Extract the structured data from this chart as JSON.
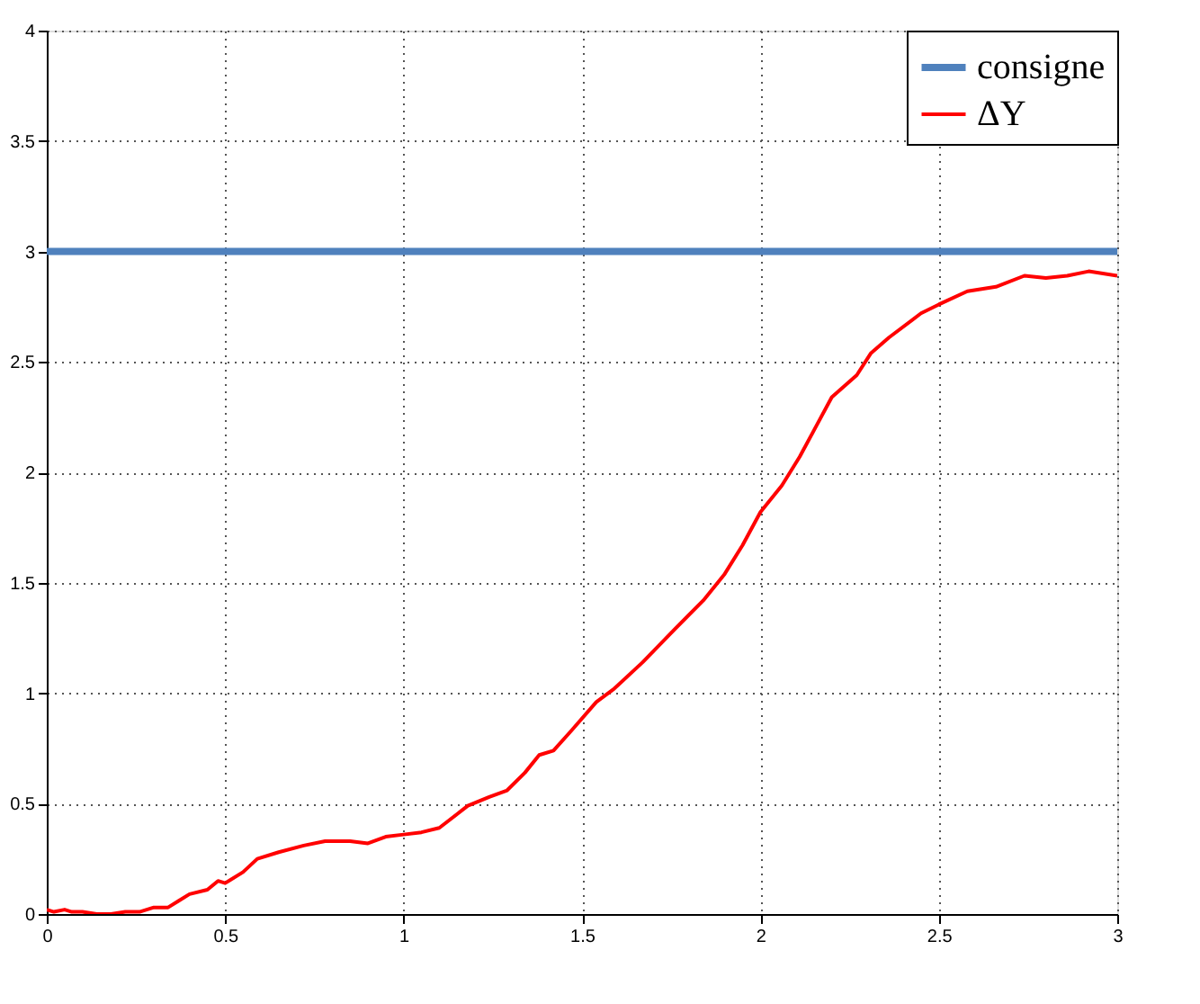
{
  "chart_data": {
    "type": "line",
    "xlim": [
      0,
      3
    ],
    "ylim": [
      0,
      4
    ],
    "xticks": [
      0,
      0.5,
      1,
      1.5,
      2,
      2.5,
      3
    ],
    "yticks": [
      0,
      0.5,
      1,
      1.5,
      2,
      2.5,
      3,
      3.5,
      4
    ],
    "grid": true,
    "legend": "top right",
    "line_style": "solid",
    "marker": "none",
    "series": [
      {
        "name": "consigne",
        "color": "#4f81bd",
        "x": [
          0,
          3
        ],
        "values": [
          3,
          3
        ]
      },
      {
        "name": "ΔY",
        "color": "#ff0000",
        "x": [
          0,
          0.02,
          0.05,
          0.07,
          0.1,
          0.14,
          0.18,
          0.22,
          0.26,
          0.3,
          0.34,
          0.37,
          0.4,
          0.45,
          0.48,
          0.5,
          0.55,
          0.59,
          0.65,
          0.72,
          0.78,
          0.85,
          0.9,
          0.95,
          1.0,
          1.05,
          1.1,
          1.18,
          1.24,
          1.29,
          1.34,
          1.38,
          1.42,
          1.47,
          1.54,
          1.59,
          1.67,
          1.76,
          1.84,
          1.9,
          1.95,
          2.0,
          2.06,
          2.11,
          2.15,
          2.2,
          2.27,
          2.31,
          2.36,
          2.45,
          2.5,
          2.58,
          2.66,
          2.74,
          2.8,
          2.86,
          2.92,
          3.0
        ],
        "values": [
          0.02,
          0.01,
          0.02,
          0.01,
          0.01,
          0.0,
          0.0,
          0.01,
          0.01,
          0.03,
          0.03,
          0.06,
          0.09,
          0.11,
          0.15,
          0.14,
          0.19,
          0.25,
          0.28,
          0.31,
          0.33,
          0.33,
          0.32,
          0.35,
          0.36,
          0.37,
          0.39,
          0.49,
          0.53,
          0.56,
          0.64,
          0.72,
          0.74,
          0.83,
          0.96,
          1.02,
          1.14,
          1.29,
          1.42,
          1.54,
          1.67,
          1.82,
          1.94,
          2.07,
          2.19,
          2.34,
          2.44,
          2.54,
          2.61,
          2.72,
          2.76,
          2.82,
          2.84,
          2.89,
          2.88,
          2.89,
          2.91,
          2.89
        ]
      }
    ]
  }
}
